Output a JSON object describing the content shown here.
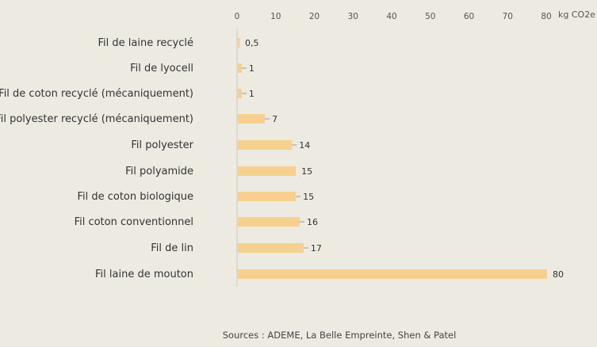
{
  "chart_data": {
    "type": "bar",
    "orientation": "horizontal",
    "categories": [
      "Fil de laine recyclé",
      "Fil de lyocell",
      "Fil de coton recyclé (mécaniquement)",
      "Fil polyester recyclé (mécaniquement)",
      "Fil polyester",
      "Fil polyamide",
      "Fil de coton biologique",
      "Fil coton conventionnel",
      "Fil de lin",
      "Fil laine de mouton"
    ],
    "values": [
      0.5,
      1,
      1,
      7,
      14,
      15,
      15,
      16,
      17,
      80
    ],
    "value_labels": [
      "0,5",
      "1",
      "1",
      "7",
      "14",
      "15",
      "15",
      "16",
      "17",
      "80"
    ],
    "xlim": [
      0,
      80
    ],
    "xticks": [
      "0",
      "10",
      "20",
      "30",
      "40",
      "50",
      "60",
      "70",
      "80"
    ],
    "xaxis_position": "top",
    "unit_label": "kg CO2e",
    "grid": false,
    "bar_color": "#f7cf8f",
    "background": "#edeae2",
    "source": "Sources  : ADEME, La Belle Empreinte, Shen & Patel"
  }
}
